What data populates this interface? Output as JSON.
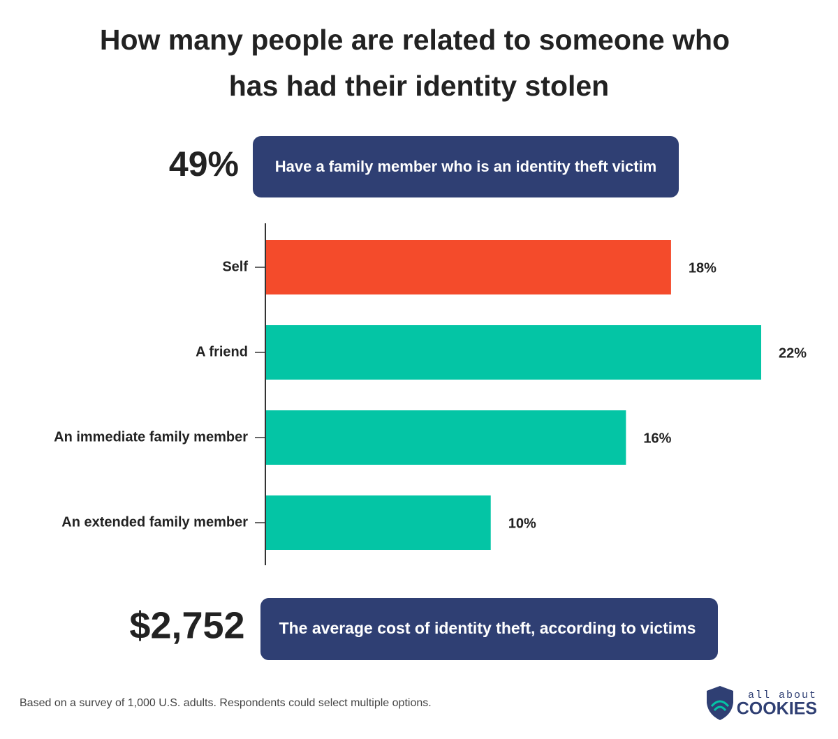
{
  "chart_data": {
    "type": "barh",
    "title": [
      "How many people are related to someone who",
      "has had their identity stolen"
    ],
    "categories": [
      "Self",
      "A friend",
      "An immediate family member",
      "An extended family member"
    ],
    "values": [
      18,
      22,
      16,
      10
    ],
    "value_labels": [
      "18%",
      "22%",
      "16%",
      "10%"
    ],
    "colors": [
      "#f44b2b",
      "#04c5a5",
      "#04c5a5",
      "#04c5a5"
    ],
    "annotations": [
      {
        "figure": "49%",
        "text": "Have a family member who is an identity theft victim"
      },
      {
        "figure": "$2,752",
        "text": "The average cost of identity theft, according to victims"
      }
    ],
    "footnote": "Based on a survey of 1,000 U.S. adults. Respondents could select multiple options.",
    "logo": [
      "all about",
      "COOKIES"
    ]
  }
}
